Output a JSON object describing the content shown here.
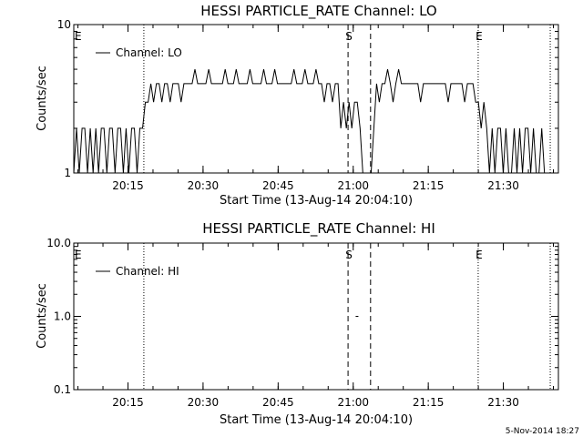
{
  "footer_timestamp": "5-Nov-2014 18:27",
  "chart_data": [
    {
      "type": "line",
      "title": "HESSI PARTICLE_RATE Channel: LO",
      "xlabel": "Start Time (13-Aug-14 20:04:10)",
      "ylabel": "Counts/sec",
      "yscale": "log",
      "ylim": [
        1,
        10
      ],
      "xlim_minutes": [
        "20:04:10",
        "21:41:00"
      ],
      "xticks": [
        "20:15",
        "20:30",
        "20:45",
        "21:00",
        "21:15",
        "21:30"
      ],
      "xtick_minutes": [
        10.83,
        25.83,
        40.83,
        55.83,
        70.83,
        85.83
      ],
      "yticks": [
        "1",
        "10"
      ],
      "ytick_values": [
        1,
        10
      ],
      "legend": "Channel: LO",
      "legend_position": "top-left",
      "markers": [
        {
          "minute": 0.0,
          "label": "E",
          "style": "none"
        },
        {
          "minute": 14.0,
          "label": "",
          "style": "dotted"
        },
        {
          "minute": 54.8,
          "label": "S",
          "style": "dashed"
        },
        {
          "minute": 59.3,
          "label": "",
          "style": "dashed"
        },
        {
          "minute": 80.8,
          "label": "E",
          "style": "dotted"
        },
        {
          "minute": 95.2,
          "label": "",
          "style": "dotted"
        }
      ],
      "series": [
        {
          "name": "Channel: LO",
          "t_step_minutes": 0.55,
          "t_start_minute": 0.0,
          "values": [
            1,
            2,
            1,
            2,
            2,
            1,
            2,
            1,
            2,
            1,
            2,
            2,
            1,
            2,
            2,
            1,
            2,
            2,
            1,
            2,
            1,
            2,
            2,
            1,
            2,
            2,
            3,
            3,
            4,
            3,
            4,
            4,
            3,
            4,
            4,
            3,
            4,
            4,
            4,
            3,
            4,
            4,
            4,
            4,
            5,
            4,
            4,
            4,
            4,
            5,
            4,
            4,
            4,
            4,
            4,
            5,
            4,
            4,
            4,
            5,
            4,
            4,
            4,
            4,
            5,
            4,
            4,
            4,
            4,
            5,
            4,
            4,
            4,
            5,
            4,
            4,
            4,
            4,
            4,
            4,
            5,
            4,
            4,
            4,
            5,
            4,
            4,
            4,
            5,
            4,
            4,
            3,
            4,
            4,
            3,
            4,
            4,
            2,
            3,
            2,
            3,
            2,
            3,
            3,
            2,
            1,
            1,
            1,
            1,
            2,
            4,
            3,
            4,
            4,
            5,
            4,
            3,
            4,
            5,
            4,
            4,
            4,
            4,
            4,
            4,
            4,
            3,
            4,
            4,
            4,
            4,
            4,
            4,
            4,
            4,
            4,
            3,
            4,
            4,
            4,
            4,
            4,
            3,
            4,
            4,
            4,
            3,
            3,
            2,
            3,
            2,
            1,
            2,
            1,
            2,
            2,
            1,
            2,
            1,
            1,
            2,
            1,
            2,
            1,
            2,
            2,
            1,
            2,
            1,
            1,
            2,
            1
          ]
        }
      ]
    },
    {
      "type": "line",
      "title": "HESSI PARTICLE_RATE Channel: HI",
      "xlabel": "Start Time (13-Aug-14 20:04:10)",
      "ylabel": "Counts/sec",
      "yscale": "log",
      "ylim": [
        0.1,
        10
      ],
      "xlim_minutes": [
        "20:04:10",
        "21:41:00"
      ],
      "xticks": [
        "20:15",
        "20:30",
        "20:45",
        "21:00",
        "21:15",
        "21:30"
      ],
      "xtick_minutes": [
        10.83,
        25.83,
        40.83,
        55.83,
        70.83,
        85.83
      ],
      "yticks": [
        "0.1",
        "1.0",
        "10.0"
      ],
      "ytick_values": [
        0.1,
        1,
        10
      ],
      "legend": "Channel: HI",
      "legend_position": "top-left",
      "markers": [
        {
          "minute": 0.0,
          "label": "E",
          "style": "none"
        },
        {
          "minute": 14.0,
          "label": "",
          "style": "dotted"
        },
        {
          "minute": 54.8,
          "label": "S",
          "style": "dashed"
        },
        {
          "minute": 59.3,
          "label": "",
          "style": "dashed"
        },
        {
          "minute": 80.8,
          "label": "E",
          "style": "dotted"
        },
        {
          "minute": 95.2,
          "label": "",
          "style": "dotted"
        }
      ],
      "series": [
        {
          "name": "Channel: HI",
          "points": [
            {
              "minute": 56.5,
              "value": 1.0
            }
          ]
        }
      ]
    }
  ]
}
